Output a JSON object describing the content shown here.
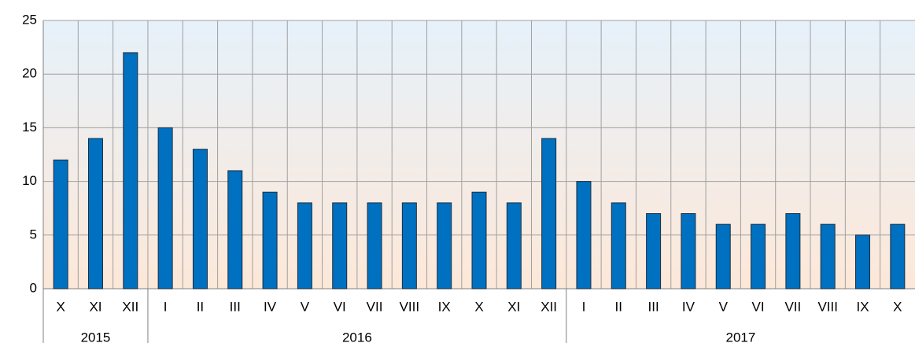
{
  "chart_data": {
    "type": "bar",
    "groups": [
      {
        "name": "2015",
        "categories": [
          "X",
          "XI",
          "XII"
        ]
      },
      {
        "name": "2016",
        "categories": [
          "I",
          "II",
          "III",
          "IV",
          "V",
          "VI",
          "VII",
          "VIII",
          "IX",
          "X",
          "XI",
          "XII"
        ]
      },
      {
        "name": "2017",
        "categories": [
          "I",
          "II",
          "III",
          "IV",
          "V",
          "VI",
          "VII",
          "VIII",
          "IX",
          "X"
        ]
      }
    ],
    "values": [
      12,
      14,
      22,
      15,
      13,
      11,
      9,
      8,
      8,
      8,
      8,
      8,
      9,
      8,
      14,
      10,
      8,
      7,
      7,
      6,
      6,
      7,
      6,
      5,
      6
    ],
    "color": "#0070c0",
    "ylim": [
      0,
      25
    ],
    "yticks": [
      0,
      5,
      10,
      15,
      20,
      25
    ],
    "grid": true
  }
}
